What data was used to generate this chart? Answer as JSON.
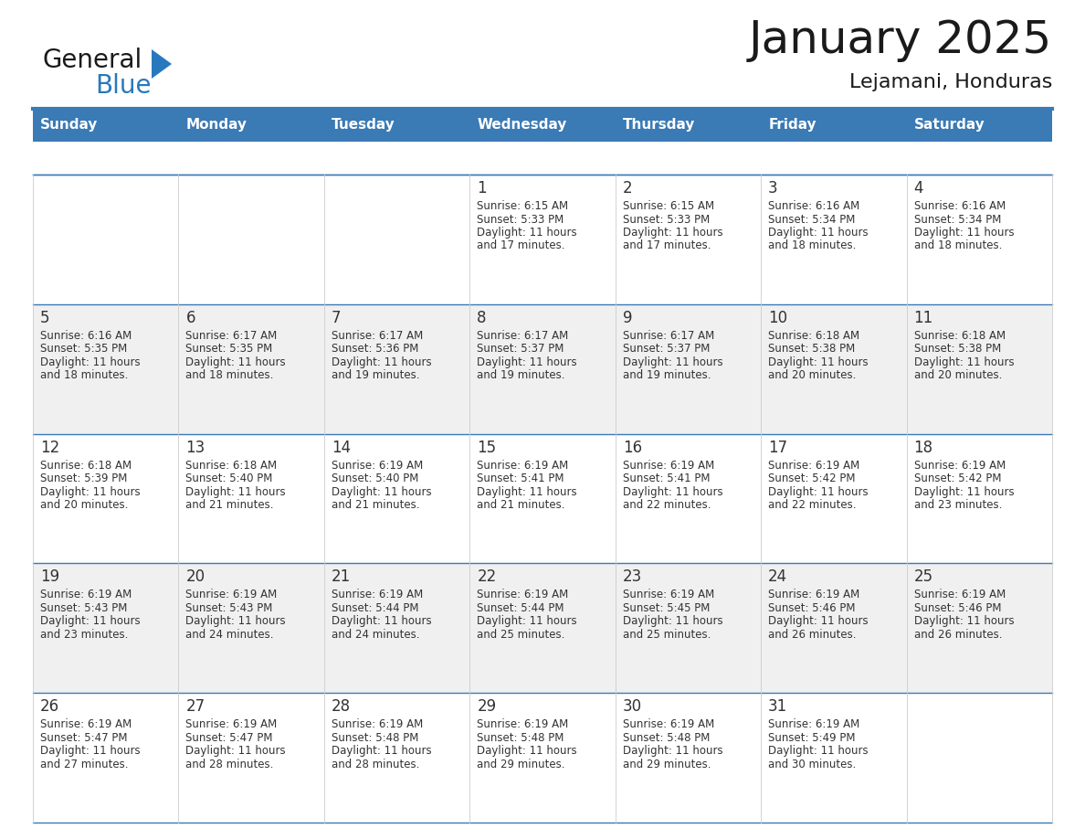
{
  "title": "January 2025",
  "subtitle": "Lejamani, Honduras",
  "days_of_week": [
    "Sunday",
    "Monday",
    "Tuesday",
    "Wednesday",
    "Thursday",
    "Friday",
    "Saturday"
  ],
  "header_bg": "#3a7ab5",
  "header_text": "#ffffff",
  "row_bg_light": "#f0f0f0",
  "row_bg_white": "#ffffff",
  "cell_text_color": "#333333",
  "day_num_color": "#333333",
  "grid_line_color": "#3a7ab5",
  "logo_general_color": "#1a1a1a",
  "logo_blue_color": "#2878be",
  "logo_triangle_color": "#2878be",
  "calendar": [
    [
      {
        "day": null
      },
      {
        "day": null
      },
      {
        "day": null
      },
      {
        "day": 1,
        "sunrise": "6:15 AM",
        "sunset": "5:33 PM",
        "daylight": "11 hours",
        "daylight2": "and 17 minutes."
      },
      {
        "day": 2,
        "sunrise": "6:15 AM",
        "sunset": "5:33 PM",
        "daylight": "11 hours",
        "daylight2": "and 17 minutes."
      },
      {
        "day": 3,
        "sunrise": "6:16 AM",
        "sunset": "5:34 PM",
        "daylight": "11 hours",
        "daylight2": "and 18 minutes."
      },
      {
        "day": 4,
        "sunrise": "6:16 AM",
        "sunset": "5:34 PM",
        "daylight": "11 hours",
        "daylight2": "and 18 minutes."
      }
    ],
    [
      {
        "day": 5,
        "sunrise": "6:16 AM",
        "sunset": "5:35 PM",
        "daylight": "11 hours",
        "daylight2": "and 18 minutes."
      },
      {
        "day": 6,
        "sunrise": "6:17 AM",
        "sunset": "5:35 PM",
        "daylight": "11 hours",
        "daylight2": "and 18 minutes."
      },
      {
        "day": 7,
        "sunrise": "6:17 AM",
        "sunset": "5:36 PM",
        "daylight": "11 hours",
        "daylight2": "and 19 minutes."
      },
      {
        "day": 8,
        "sunrise": "6:17 AM",
        "sunset": "5:37 PM",
        "daylight": "11 hours",
        "daylight2": "and 19 minutes."
      },
      {
        "day": 9,
        "sunrise": "6:17 AM",
        "sunset": "5:37 PM",
        "daylight": "11 hours",
        "daylight2": "and 19 minutes."
      },
      {
        "day": 10,
        "sunrise": "6:18 AM",
        "sunset": "5:38 PM",
        "daylight": "11 hours",
        "daylight2": "and 20 minutes."
      },
      {
        "day": 11,
        "sunrise": "6:18 AM",
        "sunset": "5:38 PM",
        "daylight": "11 hours",
        "daylight2": "and 20 minutes."
      }
    ],
    [
      {
        "day": 12,
        "sunrise": "6:18 AM",
        "sunset": "5:39 PM",
        "daylight": "11 hours",
        "daylight2": "and 20 minutes."
      },
      {
        "day": 13,
        "sunrise": "6:18 AM",
        "sunset": "5:40 PM",
        "daylight": "11 hours",
        "daylight2": "and 21 minutes."
      },
      {
        "day": 14,
        "sunrise": "6:19 AM",
        "sunset": "5:40 PM",
        "daylight": "11 hours",
        "daylight2": "and 21 minutes."
      },
      {
        "day": 15,
        "sunrise": "6:19 AM",
        "sunset": "5:41 PM",
        "daylight": "11 hours",
        "daylight2": "and 21 minutes."
      },
      {
        "day": 16,
        "sunrise": "6:19 AM",
        "sunset": "5:41 PM",
        "daylight": "11 hours",
        "daylight2": "and 22 minutes."
      },
      {
        "day": 17,
        "sunrise": "6:19 AM",
        "sunset": "5:42 PM",
        "daylight": "11 hours",
        "daylight2": "and 22 minutes."
      },
      {
        "day": 18,
        "sunrise": "6:19 AM",
        "sunset": "5:42 PM",
        "daylight": "11 hours",
        "daylight2": "and 23 minutes."
      }
    ],
    [
      {
        "day": 19,
        "sunrise": "6:19 AM",
        "sunset": "5:43 PM",
        "daylight": "11 hours",
        "daylight2": "and 23 minutes."
      },
      {
        "day": 20,
        "sunrise": "6:19 AM",
        "sunset": "5:43 PM",
        "daylight": "11 hours",
        "daylight2": "and 24 minutes."
      },
      {
        "day": 21,
        "sunrise": "6:19 AM",
        "sunset": "5:44 PM",
        "daylight": "11 hours",
        "daylight2": "and 24 minutes."
      },
      {
        "day": 22,
        "sunrise": "6:19 AM",
        "sunset": "5:44 PM",
        "daylight": "11 hours",
        "daylight2": "and 25 minutes."
      },
      {
        "day": 23,
        "sunrise": "6:19 AM",
        "sunset": "5:45 PM",
        "daylight": "11 hours",
        "daylight2": "and 25 minutes."
      },
      {
        "day": 24,
        "sunrise": "6:19 AM",
        "sunset": "5:46 PM",
        "daylight": "11 hours",
        "daylight2": "and 26 minutes."
      },
      {
        "day": 25,
        "sunrise": "6:19 AM",
        "sunset": "5:46 PM",
        "daylight": "11 hours",
        "daylight2": "and 26 minutes."
      }
    ],
    [
      {
        "day": 26,
        "sunrise": "6:19 AM",
        "sunset": "5:47 PM",
        "daylight": "11 hours",
        "daylight2": "and 27 minutes."
      },
      {
        "day": 27,
        "sunrise": "6:19 AM",
        "sunset": "5:47 PM",
        "daylight": "11 hours",
        "daylight2": "and 28 minutes."
      },
      {
        "day": 28,
        "sunrise": "6:19 AM",
        "sunset": "5:48 PM",
        "daylight": "11 hours",
        "daylight2": "and 28 minutes."
      },
      {
        "day": 29,
        "sunrise": "6:19 AM",
        "sunset": "5:48 PM",
        "daylight": "11 hours",
        "daylight2": "and 29 minutes."
      },
      {
        "day": 30,
        "sunrise": "6:19 AM",
        "sunset": "5:48 PM",
        "daylight": "11 hours",
        "daylight2": "and 29 minutes."
      },
      {
        "day": 31,
        "sunrise": "6:19 AM",
        "sunset": "5:49 PM",
        "daylight": "11 hours",
        "daylight2": "and 30 minutes."
      },
      {
        "day": null
      }
    ]
  ],
  "fig_width": 11.88,
  "fig_height": 9.18,
  "dpi": 100
}
